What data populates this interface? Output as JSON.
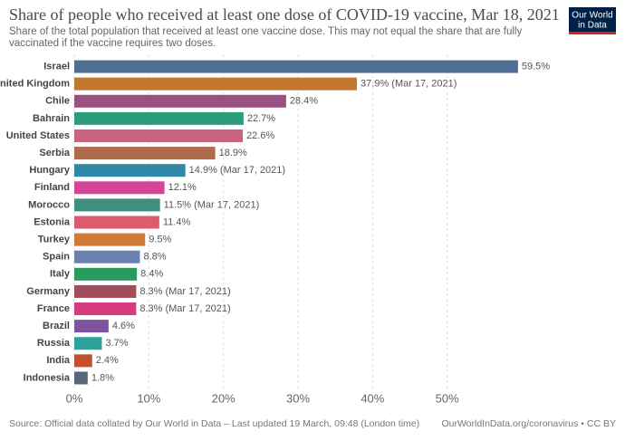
{
  "chart_data": {
    "type": "bar",
    "orientation": "horizontal",
    "title": "Share of people who received at least one dose of COVID-19 vaccine, Mar 18, 2021",
    "subtitle": "Share of the total population that received at least one vaccine dose. This may not equal the share that are fully vaccinated if the vaccine requires two doses.",
    "logo": [
      "Our World",
      "in Data"
    ],
    "source": "Source: Official data collated by Our World in Data – Last updated 19 March, 09:48 (London time)",
    "credit": "OurWorldInData.org/coronavirus • CC BY",
    "categories": [
      "Israel",
      "United Kingdom",
      "Chile",
      "Bahrain",
      "United States",
      "Serbia",
      "Hungary",
      "Finland",
      "Morocco",
      "Estonia",
      "Turkey",
      "Spain",
      "Italy",
      "Germany",
      "France",
      "Brazil",
      "Russia",
      "India",
      "Indonesia"
    ],
    "values": [
      59.5,
      37.9,
      28.4,
      22.7,
      22.6,
      18.9,
      14.9,
      12.1,
      11.5,
      11.4,
      9.5,
      8.8,
      8.4,
      8.3,
      8.3,
      4.6,
      3.7,
      2.4,
      1.8
    ],
    "value_labels": [
      "59.5%",
      "37.9% (Mar 17, 2021)",
      "28.4%",
      "22.7%",
      "22.6%",
      "18.9%",
      "14.9% (Mar 17, 2021)",
      "12.1%",
      "11.5% (Mar 17, 2021)",
      "11.4%",
      "9.5%",
      "8.8%",
      "8.4%",
      "8.3% (Mar 17, 2021)",
      "8.3% (Mar 17, 2021)",
      "4.6%",
      "3.7%",
      "2.4%",
      "1.8%"
    ],
    "colors": [
      "#4f6e93",
      "#c0782f",
      "#9a5181",
      "#2a9d7c",
      "#c86480",
      "#b06a4c",
      "#2f88a8",
      "#d6449a",
      "#3f8e7f",
      "#de5a6e",
      "#cf7a35",
      "#6a80b0",
      "#2a9a5e",
      "#a14d5a",
      "#d63c7f",
      "#7e54a0",
      "#2ea19a",
      "#c2502c",
      "#58667a"
    ],
    "xlim": [
      0,
      60
    ],
    "xticks": [
      {
        "value": 0,
        "label": "0%"
      },
      {
        "value": 10,
        "label": "10%"
      },
      {
        "value": 20,
        "label": "20%"
      },
      {
        "value": 30,
        "label": "30%"
      },
      {
        "value": 40,
        "label": "40%"
      },
      {
        "value": 50,
        "label": "50%"
      }
    ],
    "grid": true
  }
}
